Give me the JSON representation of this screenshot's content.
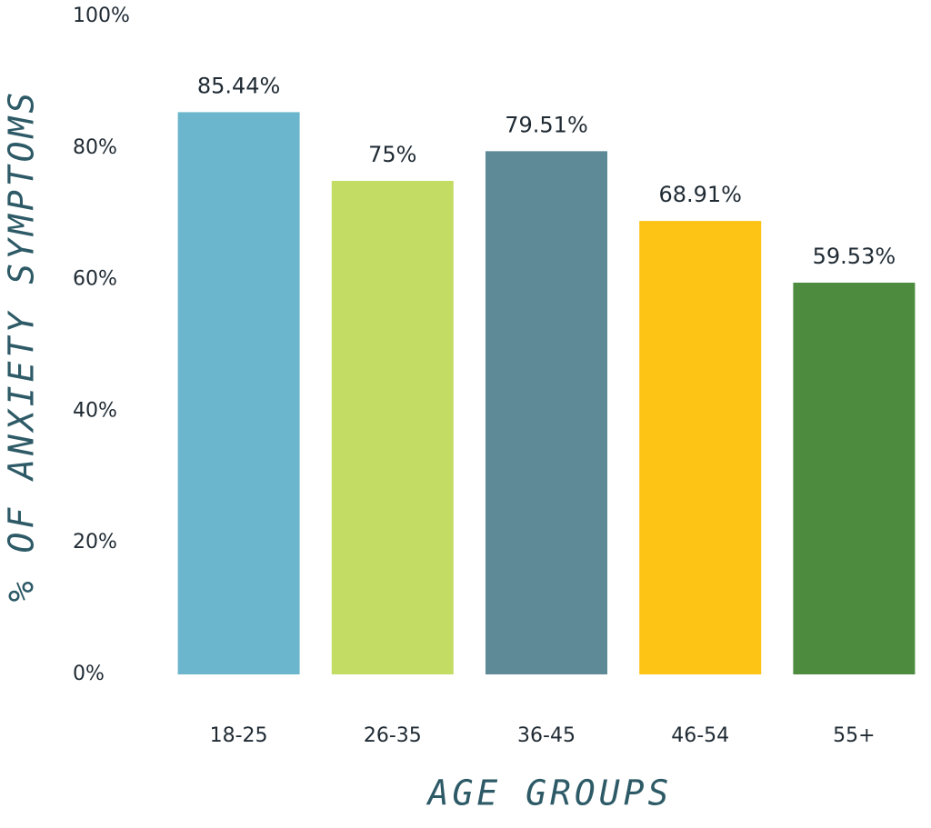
{
  "chart_data": {
    "type": "bar",
    "x_label": "AGE GROUPS",
    "y_label": "% OF ANXIETY SYMPTOMS",
    "categories": [
      "18-25",
      "26-35",
      "36-45",
      "46-54",
      "55+"
    ],
    "values": [
      85.44,
      75,
      79.51,
      68.91,
      59.53
    ],
    "value_labels": [
      "85.44%",
      "75%",
      "79.51%",
      "68.91%",
      "59.53%"
    ],
    "colors": [
      "#6bb6cc",
      "#c3dc64",
      "#5d8a96",
      "#fdc315",
      "#4d8c3f"
    ],
    "ylim": [
      0,
      100
    ],
    "yticks": [
      {
        "value": 0,
        "label": "0%"
      },
      {
        "value": 20,
        "label": "20%"
      },
      {
        "value": 40,
        "label": "40%"
      },
      {
        "value": 60,
        "label": "60%"
      },
      {
        "value": 80,
        "label": "80%"
      },
      {
        "value": 100,
        "label": "100%"
      }
    ],
    "grid": false
  }
}
